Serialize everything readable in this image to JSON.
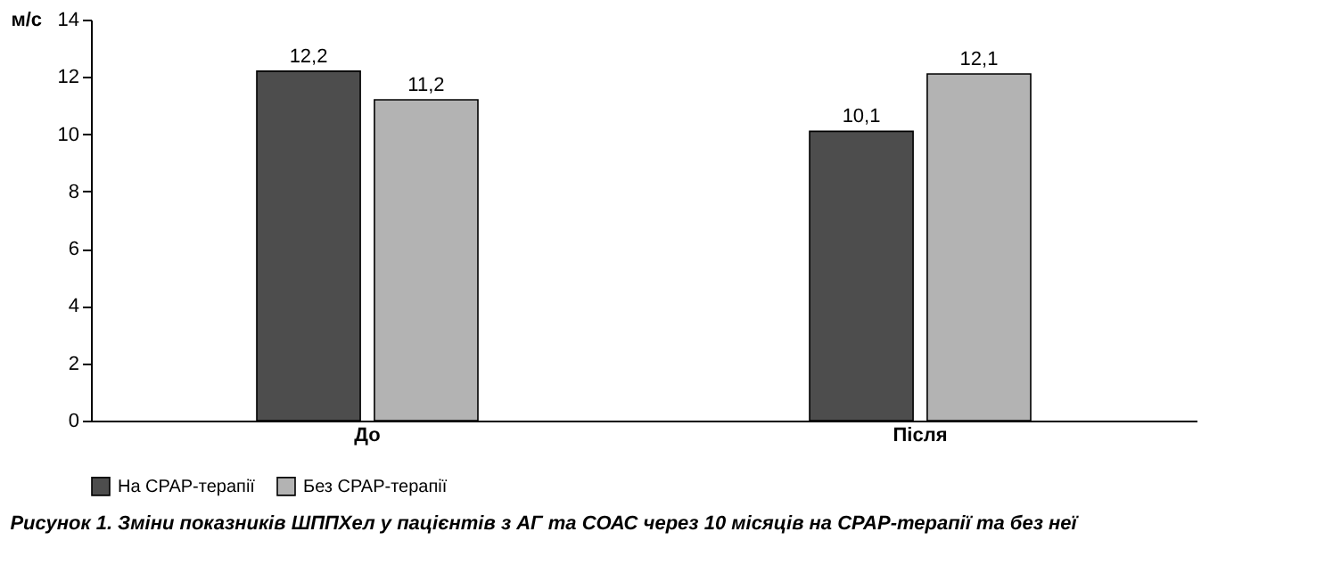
{
  "chart_data": {
    "type": "bar",
    "title": "Рисунок 1. Зміни показників ШППХел у пацієнтів з АГ та СОАС через 10 місяців на CPAP-терапії та без неї",
    "ylabel": "м/с",
    "categories": [
      "До",
      "Після"
    ],
    "series": [
      {
        "name": "На CPAP-терапії",
        "color": "#4d4d4d",
        "values": [
          12.2,
          10.1
        ],
        "value_labels": [
          "12,2",
          "10,1"
        ]
      },
      {
        "name": "Без CPAP-терапії",
        "color": "#b3b3b3",
        "values": [
          11.2,
          12.1
        ],
        "value_labels": [
          "11,2",
          "12,1"
        ]
      }
    ],
    "ylim": [
      0,
      14
    ],
    "yticks": [
      0,
      2,
      4,
      6,
      8,
      10,
      12,
      14
    ],
    "grid": false,
    "legend": "bottom"
  }
}
